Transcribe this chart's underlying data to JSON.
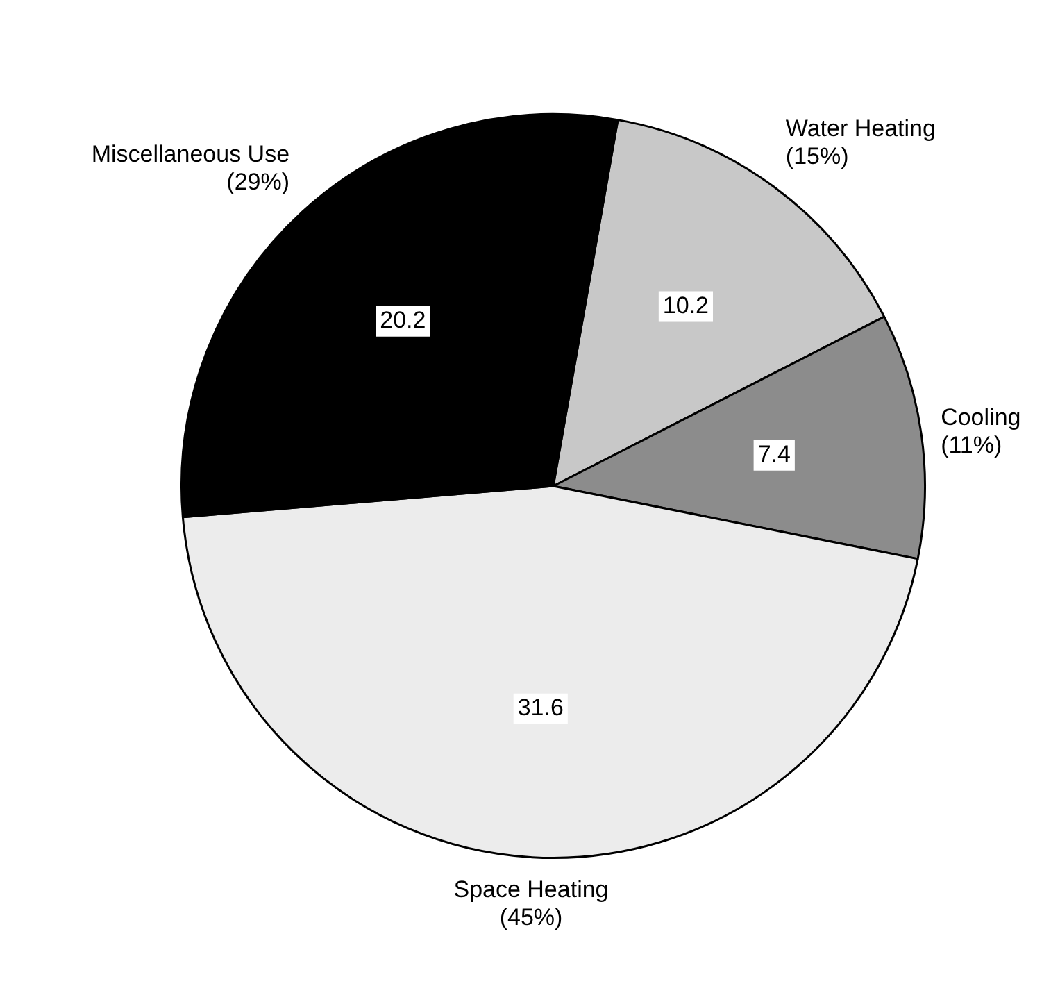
{
  "chart_data": {
    "type": "pie",
    "categories": [
      "Water Heating (15%)",
      "Cooling (11%)",
      "Space Heating (45%)",
      "Miscellaneous Use (29%)"
    ],
    "values": [
      10.2,
      7.4,
      31.6,
      20.2
    ],
    "colors": [
      "#c8c8c8",
      "#8c8c8c",
      "#ececec",
      "#000000"
    ],
    "data_labels": true,
    "legend": false
  }
}
